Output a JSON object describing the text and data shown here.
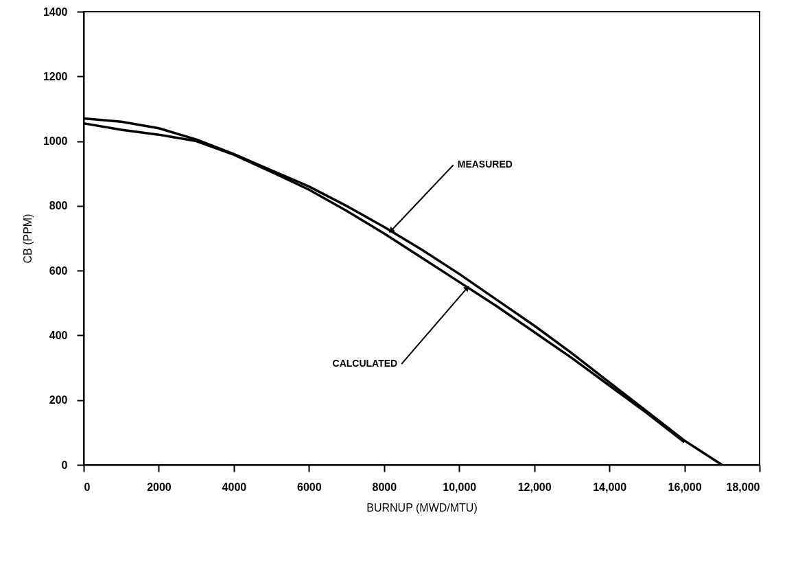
{
  "chart_data": {
    "type": "line",
    "xlabel": "BURNUP (MWD/MTU)",
    "ylabel": "CB (PPM)",
    "x": [
      0,
      1000,
      2000,
      3000,
      4000,
      5000,
      6000,
      7000,
      8000,
      9000,
      10000,
      11000,
      12000,
      13000,
      14000,
      15000,
      16000,
      17000
    ],
    "series": [
      {
        "color": "#000000",
        "values": [
          1070,
          1060,
          1040,
          1005,
          960,
          910,
          860,
          800,
          735,
          665,
          590,
          510,
          430,
          345,
          255,
          165,
          75,
          0
        ]
      },
      {
        "color": "#000000",
        "values": [
          1055,
          1035,
          1020,
          1000,
          958,
          905,
          850,
          785,
          715,
          640,
          565,
          490,
          410,
          330,
          245,
          160,
          70,
          null
        ]
      }
    ],
    "xlim": [
      0,
      18000
    ],
    "ylim": [
      0,
      1400
    ],
    "xticks": [
      0,
      2000,
      4000,
      6000,
      8000,
      {
        "value": 10000,
        "label": "10,000"
      },
      {
        "value": 12000,
        "label": "12,000"
      },
      {
        "value": 14000,
        "label": "14,000"
      },
      {
        "value": 16000,
        "label": "16,000"
      },
      {
        "value": 18000,
        "label": "18,000"
      }
    ],
    "yticks": [
      0,
      200,
      400,
      600,
      800,
      1000,
      1200,
      1400
    ],
    "annotations": [
      {
        "text": "MEASURED",
        "x": 8200,
        "y": 725
      },
      {
        "text": "CALCULATED",
        "x": 10200,
        "y": 545
      }
    ],
    "grid": false,
    "line_style": "solid",
    "marker": "none"
  }
}
